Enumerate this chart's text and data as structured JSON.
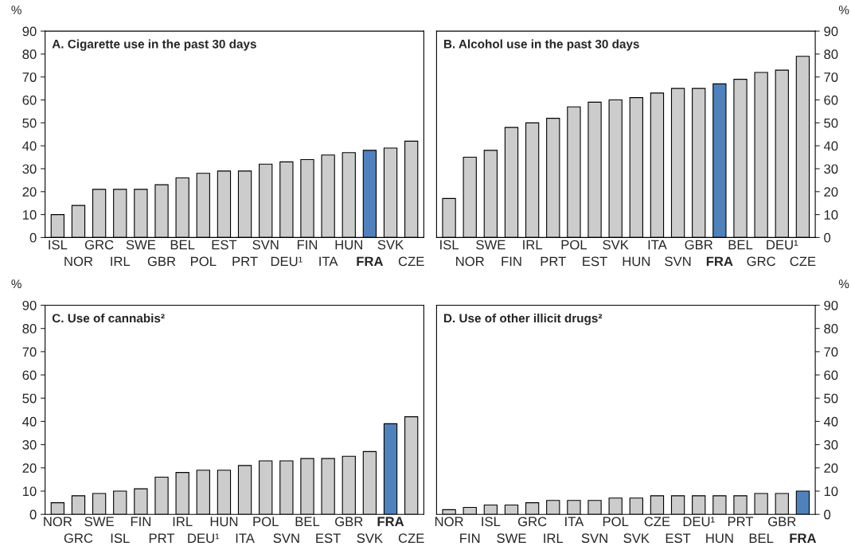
{
  "chart_data": [
    {
      "type": "bar",
      "title": "A. Cigarette use in the past 30 days",
      "ylabel": "%",
      "categories": [
        "ISL",
        "NOR",
        "GRC",
        "IRL",
        "SWE",
        "GBR",
        "BEL",
        "POL",
        "EST",
        "PRT",
        "SVN",
        "DEU¹",
        "FIN",
        "ITA",
        "HUN",
        "FRA",
        "SVK",
        "CZE"
      ],
      "series": [
        {
          "values": [
            10,
            14,
            21,
            21,
            21,
            23,
            26,
            28,
            29,
            29,
            32,
            33,
            34,
            36,
            37,
            38,
            39,
            42
          ],
          "colors": [
            "#cccccc",
            "#cccccc",
            "#cccccc",
            "#cccccc",
            "#cccccc",
            "#cccccc",
            "#cccccc",
            "#cccccc",
            "#cccccc",
            "#cccccc",
            "#cccccc",
            "#cccccc",
            "#cccccc",
            "#cccccc",
            "#cccccc",
            "#4f81bd",
            "#cccccc",
            "#cccccc"
          ]
        }
      ],
      "ylim": [
        0,
        90
      ],
      "yticks": [
        0,
        10,
        20,
        30,
        40,
        50,
        60,
        70,
        80,
        90
      ],
      "grid": false,
      "legend": false
    },
    {
      "type": "bar",
      "title": "B. Alcohol use in the past 30 days",
      "y2label": "%",
      "categories": [
        "ISL",
        "NOR",
        "SWE",
        "FIN",
        "IRL",
        "PRT",
        "POL",
        "EST",
        "SVK",
        "HUN",
        "ITA",
        "SVN",
        "GBR",
        "FRA",
        "BEL",
        "GRC",
        "DEU¹",
        "CZE"
      ],
      "series": [
        {
          "axis": "y2",
          "values": [
            17,
            35,
            38,
            48,
            50,
            52,
            57,
            59,
            60,
            61,
            63,
            65,
            65,
            67,
            69,
            72,
            73,
            79
          ],
          "colors": [
            "#cccccc",
            "#cccccc",
            "#cccccc",
            "#cccccc",
            "#cccccc",
            "#cccccc",
            "#cccccc",
            "#cccccc",
            "#cccccc",
            "#cccccc",
            "#cccccc",
            "#cccccc",
            "#cccccc",
            "#4f81bd",
            "#cccccc",
            "#cccccc",
            "#cccccc",
            "#cccccc"
          ]
        }
      ],
      "y2lim": [
        0,
        90
      ],
      "y2ticks": [
        0,
        10,
        20,
        30,
        40,
        50,
        60,
        70,
        80,
        90
      ],
      "grid": false,
      "legend": false
    },
    {
      "type": "bar",
      "title": "C. Use of cannabis²",
      "ylabel": "%",
      "categories": [
        "NOR",
        "GRC",
        "SWE",
        "ISL",
        "FIN",
        "PRT",
        "IRL",
        "DEU¹",
        "HUN",
        "ITA",
        "POL",
        "SVN",
        "BEL",
        "EST",
        "GBR",
        "SVK",
        "FRA",
        "CZE"
      ],
      "series": [
        {
          "values": [
            5,
            8,
            9,
            10,
            11,
            16,
            18,
            19,
            19,
            21,
            23,
            23,
            24,
            24,
            25,
            27,
            39,
            42
          ],
          "colors": [
            "#cccccc",
            "#cccccc",
            "#cccccc",
            "#cccccc",
            "#cccccc",
            "#cccccc",
            "#cccccc",
            "#cccccc",
            "#cccccc",
            "#cccccc",
            "#cccccc",
            "#cccccc",
            "#cccccc",
            "#cccccc",
            "#cccccc",
            "#cccccc",
            "#4f81bd",
            "#cccccc"
          ]
        }
      ],
      "ylim": [
        0,
        90
      ],
      "yticks": [
        0,
        10,
        20,
        30,
        40,
        50,
        60,
        70,
        80,
        90
      ],
      "grid": false,
      "legend": false
    },
    {
      "type": "bar",
      "title": "D. Use of other illicit drugs²",
      "y2label": "%",
      "categories": [
        "NOR",
        "FIN",
        "ISL",
        "SWE",
        "GRC",
        "IRL",
        "ITA",
        "SVN",
        "POL",
        "SVK",
        "CZE",
        "EST",
        "DEU¹",
        "HUN",
        "PRT",
        "BEL",
        "GBR",
        "FRA"
      ],
      "series": [
        {
          "axis": "y2",
          "values": [
            2,
            3,
            4,
            4,
            5,
            6,
            6,
            6,
            7,
            7,
            8,
            8,
            8,
            8,
            8,
            9,
            9,
            10
          ],
          "colors": [
            "#cccccc",
            "#cccccc",
            "#cccccc",
            "#cccccc",
            "#cccccc",
            "#cccccc",
            "#cccccc",
            "#cccccc",
            "#cccccc",
            "#cccccc",
            "#cccccc",
            "#cccccc",
            "#cccccc",
            "#cccccc",
            "#cccccc",
            "#cccccc",
            "#cccccc",
            "#4f81bd"
          ]
        }
      ],
      "y2lim": [
        0,
        90
      ],
      "y2ticks": [
        0,
        10,
        20,
        30,
        40,
        50,
        60,
        70,
        80,
        90
      ],
      "grid": false,
      "legend": false
    }
  ]
}
